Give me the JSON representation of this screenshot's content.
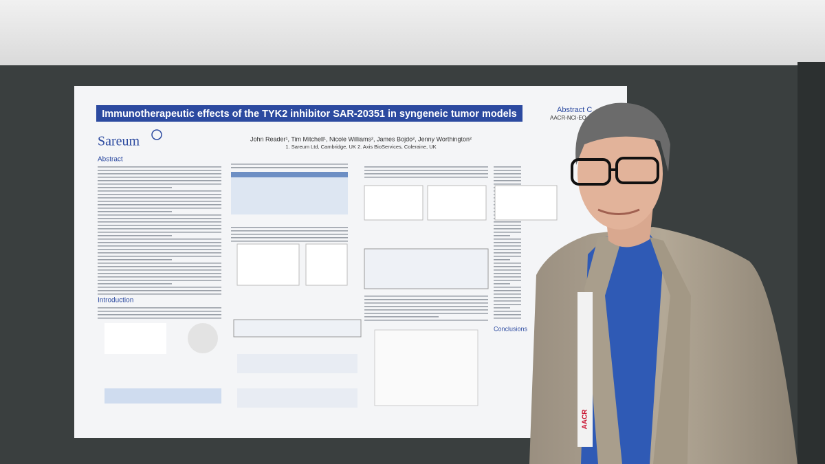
{
  "poster": {
    "title": "Immunotherapeutic effects of the TYK2 inhibitor SAR-20351 in syngeneic tumor models",
    "logo": "Sareum",
    "authors": "John Reader¹, Tim Mitchell¹, Nicole Williams², James Bojdo², Jenny Worthington²",
    "affiliations": "1. Sareum Ltd, Cambridge, UK 2. Axis BioServices, Coleraine, UK",
    "sections": [
      "Abstract",
      "Introduction",
      "Conclusions"
    ],
    "corner_title": "Abstract C",
    "corner_subtitle": "AACR-NCI-EO"
  },
  "badge": {
    "lanyard": "AACR"
  }
}
